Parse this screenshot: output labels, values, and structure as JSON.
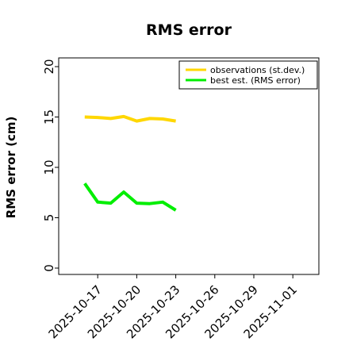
{
  "chart_data": {
    "type": "line",
    "title": "RMS error",
    "xlabel": "",
    "ylabel": "RMS error (cm)",
    "ylim": [
      0,
      20
    ],
    "xlim": [
      "2025-10-14",
      "2025-11-03"
    ],
    "yticks": [
      0,
      5,
      10,
      15,
      20
    ],
    "xticks": [
      {
        "label": "2025-10-17",
        "color": "#000000"
      },
      {
        "label": "2025-10-20",
        "color": "#000000"
      },
      {
        "label": "2025-10-23",
        "color": "#228B22"
      },
      {
        "label": "2025-10-26",
        "color": "#000000"
      },
      {
        "label": "2025-10-29",
        "color": "#000000"
      },
      {
        "label": "2025-11-01",
        "color": "#000000"
      }
    ],
    "legend_position": "top-right",
    "grid": false,
    "series": [
      {
        "name": "observations (st.dev.)",
        "color": "#FFD700",
        "points": [
          {
            "x": "2025-10-16",
            "y": 15.0
          },
          {
            "x": "2025-10-17",
            "y": 14.95
          },
          {
            "x": "2025-10-18",
            "y": 14.85
          },
          {
            "x": "2025-10-19",
            "y": 15.05
          },
          {
            "x": "2025-10-20",
            "y": 14.6
          },
          {
            "x": "2025-10-21",
            "y": 14.85
          },
          {
            "x": "2025-10-22",
            "y": 14.8
          },
          {
            "x": "2025-10-23",
            "y": 14.6
          }
        ]
      },
      {
        "name": "best est. (RMS error)",
        "color": "#00EE00",
        "points": [
          {
            "x": "2025-10-16",
            "y": 8.4
          },
          {
            "x": "2025-10-17",
            "y": 6.55
          },
          {
            "x": "2025-10-18",
            "y": 6.45
          },
          {
            "x": "2025-10-19",
            "y": 7.55
          },
          {
            "x": "2025-10-20",
            "y": 6.45
          },
          {
            "x": "2025-10-21",
            "y": 6.4
          },
          {
            "x": "2025-10-22",
            "y": 6.55
          },
          {
            "x": "2025-10-23",
            "y": 5.75
          }
        ]
      }
    ]
  }
}
